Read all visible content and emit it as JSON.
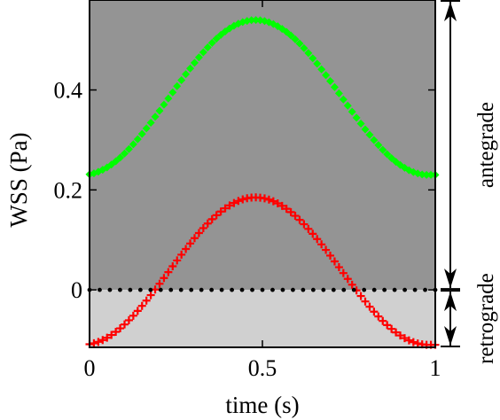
{
  "chart_data": {
    "type": "scatter",
    "xlabel": "time (s)",
    "ylabel": "WSS (Pa)",
    "xlim": [
      0,
      1
    ],
    "ylim": [
      -0.115,
      0.58
    ],
    "x_ticks": [
      0,
      0.5,
      1
    ],
    "x_tick_labels": [
      "0",
      "0.5",
      "1"
    ],
    "y_ticks": [
      0,
      0.2,
      0.4
    ],
    "y_tick_labels": [
      "0",
      "0.2",
      "0.4"
    ],
    "grid": false,
    "background_regions": [
      {
        "range": [
          0,
          0.58
        ],
        "color": "#949494"
      },
      {
        "range": [
          -0.115,
          0
        ],
        "color": "#d0d0d0"
      }
    ],
    "series": [
      {
        "marker": "diamond",
        "color": "#00ff00",
        "min": 0.23,
        "max": 0.54,
        "peak_time": 0.48,
        "n_points": 80
      },
      {
        "marker": "plus",
        "color": "#ff0000",
        "min": -0.11,
        "max": 0.185,
        "peak_time": 0.48,
        "n_points": 80
      },
      {
        "marker": "dot",
        "color": "#000000",
        "min": 0,
        "max": 0,
        "peak_time": 0.5,
        "n_points": 35
      }
    ],
    "annotations": [
      {
        "text": "antegrade",
        "from": 0,
        "to": 0.58
      },
      {
        "text": "retrograde",
        "from": -0.115,
        "to": 0
      }
    ]
  }
}
